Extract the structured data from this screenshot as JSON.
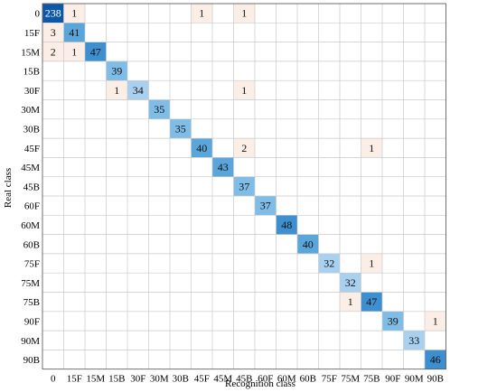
{
  "chart_data": {
    "type": "heatmap",
    "title": "",
    "xlabel": "Recognition class",
    "ylabel": "Real class",
    "categories": [
      "0",
      "15F",
      "15M",
      "15B",
      "30F",
      "30M",
      "30B",
      "45F",
      "45M",
      "45B",
      "60F",
      "60M",
      "60B",
      "75F",
      "75M",
      "75B",
      "90F",
      "90M",
      "90B"
    ],
    "cells": [
      {
        "row": 0,
        "col": 0,
        "value": 238
      },
      {
        "row": 0,
        "col": 1,
        "value": 1
      },
      {
        "row": 0,
        "col": 7,
        "value": 1
      },
      {
        "row": 0,
        "col": 9,
        "value": 1
      },
      {
        "row": 1,
        "col": 0,
        "value": 3
      },
      {
        "row": 1,
        "col": 1,
        "value": 41
      },
      {
        "row": 2,
        "col": 0,
        "value": 2
      },
      {
        "row": 2,
        "col": 1,
        "value": 1
      },
      {
        "row": 2,
        "col": 2,
        "value": 47
      },
      {
        "row": 3,
        "col": 3,
        "value": 39
      },
      {
        "row": 4,
        "col": 3,
        "value": 1
      },
      {
        "row": 4,
        "col": 4,
        "value": 34
      },
      {
        "row": 4,
        "col": 9,
        "value": 1
      },
      {
        "row": 5,
        "col": 5,
        "value": 35
      },
      {
        "row": 6,
        "col": 6,
        "value": 35
      },
      {
        "row": 7,
        "col": 7,
        "value": 40
      },
      {
        "row": 7,
        "col": 9,
        "value": 2
      },
      {
        "row": 7,
        "col": 15,
        "value": 1
      },
      {
        "row": 8,
        "col": 8,
        "value": 43
      },
      {
        "row": 9,
        "col": 9,
        "value": 37
      },
      {
        "row": 10,
        "col": 10,
        "value": 37
      },
      {
        "row": 11,
        "col": 11,
        "value": 48
      },
      {
        "row": 12,
        "col": 12,
        "value": 40
      },
      {
        "row": 13,
        "col": 13,
        "value": 32
      },
      {
        "row": 13,
        "col": 15,
        "value": 1
      },
      {
        "row": 14,
        "col": 14,
        "value": 32
      },
      {
        "row": 15,
        "col": 14,
        "value": 1
      },
      {
        "row": 15,
        "col": 15,
        "value": 47
      },
      {
        "row": 16,
        "col": 16,
        "value": 39
      },
      {
        "row": 16,
        "col": 18,
        "value": 1
      },
      {
        "row": 17,
        "col": 17,
        "value": 33
      },
      {
        "row": 18,
        "col": 18,
        "value": 46
      }
    ],
    "colors": {
      "high": "#0e57a8",
      "mid_high": "#3d8fd0",
      "mid": "#5aa6da",
      "mid_low": "#7fbde6",
      "low_diag": "#a9d1ef",
      "offdiag": "#fbeee6",
      "grid": "#c9c9c9",
      "frame": "#555555"
    }
  }
}
